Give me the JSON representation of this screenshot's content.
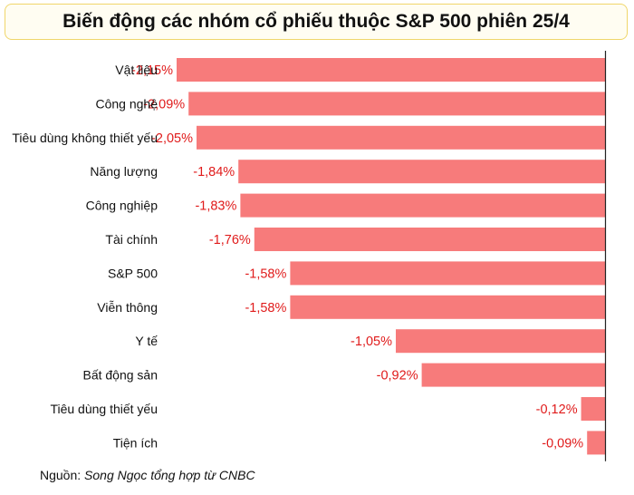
{
  "title": "Biến động các nhóm cổ phiếu thuộc S&P 500 phiên 25/4",
  "source_label": "Nguồn:",
  "source_text": "Song Ngọc tổng hợp từ CNBC",
  "colors": {
    "bar": "#f77b7b",
    "value_text": "#e01b1b",
    "axis": "#222222",
    "title_border": "#f0d66a"
  },
  "chart_data": {
    "type": "bar",
    "orientation": "horizontal",
    "title": "Biến động các nhóm cổ phiếu thuộc S&P 500 phiên 25/4",
    "categories": [
      "Vật liệu",
      "Công nghệ",
      "Tiêu dùng không thiết yếu",
      "Năng lượng",
      "Công nghiệp",
      "Tài chính",
      "S&P 500",
      "Viễn thông",
      "Y tế",
      "Bất động sản",
      "Tiêu dùng thiết yếu",
      "Tiện ích"
    ],
    "values": [
      -2.15,
      -2.09,
      -2.05,
      -1.84,
      -1.83,
      -1.76,
      -1.58,
      -1.58,
      -1.05,
      -0.92,
      -0.12,
      -0.09
    ],
    "value_labels": [
      "-2,15%",
      "-2,09%",
      "-2,05%",
      "-1,84%",
      "-1,83%",
      "-1,76%",
      "-1,58%",
      "-1,58%",
      "-1,05%",
      "-0,92%",
      "-0,12%",
      "-0,09%"
    ],
    "unit": "%",
    "xlim": [
      -2.15,
      0
    ]
  }
}
